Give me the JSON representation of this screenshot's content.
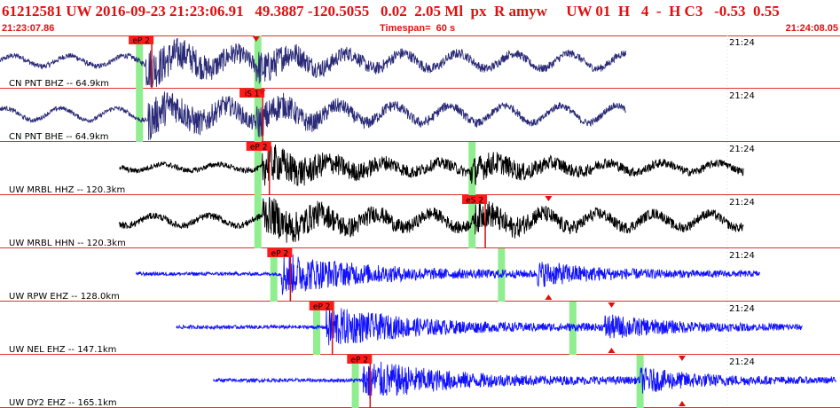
{
  "header": {
    "event_line": "61212581 UW 2016-09-23 21:23:06.91   49.3887 -120.5055   0.02  2.05 Ml  px  R amyw     UW 01  H   4  -  H C3   -0.53  0.55",
    "start_time": "21:23:07.86",
    "timespan": "Timespan=  60 s",
    "end_time": "21:24:08.05"
  },
  "colors": {
    "title_red": "#e01010",
    "grid_red": "#e03030",
    "pick_label_bg": "#ff1a1a",
    "pick_window_green": "#90ee90",
    "trace_navy": "#2a2a78",
    "trace_black": "#000000",
    "trace_blue": "#1010ff"
  },
  "traces": [
    {
      "station_label": "CN PNT BHZ -- 64.9km",
      "time_label": "21:24",
      "color_key": "trace_navy",
      "signal": {
        "start": 0.0,
        "end": 0.745,
        "p_arrival": 0.173,
        "s_arrival": 0.305,
        "noise": 0.12,
        "peak": 1.0,
        "long_period": 0.75
      },
      "picks": [
        {
          "label": "eP 2",
          "at": 0.168
        }
      ],
      "markers": [
        {
          "type": "triangle-down",
          "at": 0.305
        }
      ],
      "windows": [
        0.166,
        0.307
      ]
    },
    {
      "station_label": "CN PNT BHE -- 64.9km",
      "time_label": "21:24",
      "color_key": "trace_navy",
      "signal": {
        "start": 0.0,
        "end": 0.745,
        "p_arrival": 0.176,
        "s_arrival": 0.305,
        "noise": 0.1,
        "peak": 0.95,
        "long_period": 0.85
      },
      "picks": [
        {
          "label": "iS 1",
          "at": 0.3
        }
      ],
      "markers": [
        {
          "type": "triangle-down",
          "at": 0.312
        }
      ],
      "windows": [
        0.166,
        0.307
      ]
    },
    {
      "station_label": "UW MRBL HHZ -- 120.3km",
      "time_label": "21:24",
      "color_key": "trace_black",
      "signal": {
        "start": 0.142,
        "end": 0.885,
        "p_arrival": 0.312,
        "s_arrival": 0.56,
        "noise": 0.12,
        "peak": 0.95,
        "long_period": 0.45
      },
      "picks": [
        {
          "label": "eP 2",
          "at": 0.308
        }
      ],
      "markers": [],
      "windows": [
        0.307,
        0.562
      ]
    },
    {
      "station_label": "UW MRBL HHN -- 120.3km",
      "time_label": "21:24",
      "color_key": "trace_black",
      "signal": {
        "start": 0.142,
        "end": 0.885,
        "p_arrival": 0.312,
        "s_arrival": 0.565,
        "noise": 0.15,
        "peak": 0.95,
        "long_period": 0.7
      },
      "picks": [
        {
          "label": "eS 2",
          "at": 0.565
        }
      ],
      "markers": [
        {
          "type": "triangle-down",
          "at": 0.653
        }
      ],
      "windows": [
        0.307,
        0.562
      ]
    },
    {
      "station_label": "UW RPW EHZ -- 128.0km",
      "time_label": "21:24",
      "color_key": "trace_blue",
      "signal": {
        "start": 0.162,
        "end": 0.905,
        "p_arrival": 0.335,
        "s_arrival": 0.64,
        "noise": 0.08,
        "peak": 1.0,
        "long_period": 0.0
      },
      "picks": [
        {
          "label": "eP 2",
          "at": 0.333
        }
      ],
      "markers": [
        {
          "type": "triangle-up",
          "at": 0.653
        }
      ],
      "windows": [
        0.326,
        0.597
      ]
    },
    {
      "station_label": "UW NEL EHZ -- 147.1km",
      "time_label": "21:24",
      "color_key": "trace_blue",
      "signal": {
        "start": 0.21,
        "end": 0.955,
        "p_arrival": 0.388,
        "s_arrival": 0.72,
        "noise": 0.08,
        "peak": 1.0,
        "long_period": 0.0
      },
      "picks": [
        {
          "label": "eP 2",
          "at": 0.383
        }
      ],
      "markers": [
        {
          "type": "triangle-down",
          "at": 0.728
        },
        {
          "type": "triangle-up",
          "at": 0.728
        }
      ],
      "windows": [
        0.377,
        0.682
      ]
    },
    {
      "station_label": "UW DY2 EHZ -- 165.1km",
      "time_label": "21:24",
      "color_key": "trace_blue",
      "signal": {
        "start": 0.254,
        "end": 0.995,
        "p_arrival": 0.432,
        "s_arrival": 0.762,
        "noise": 0.08,
        "peak": 1.0,
        "long_period": 0.0
      },
      "picks": [
        {
          "label": "eP 2",
          "at": 0.428
        }
      ],
      "markers": [
        {
          "type": "triangle-down",
          "at": 0.812
        },
        {
          "type": "triangle-up",
          "at": 0.812
        }
      ],
      "windows": [
        0.423,
        0.762
      ]
    }
  ]
}
